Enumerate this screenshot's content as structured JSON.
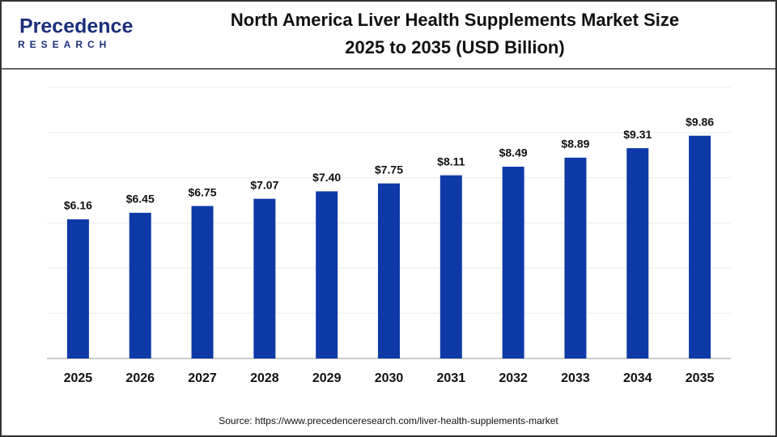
{
  "logo": {
    "name": "Precedence",
    "tagline": "RESEARCH"
  },
  "chart_data": {
    "type": "bar",
    "title": "North America Liver Health Supplements Market Size",
    "subtitle": "2025 to 2035 (USD Billion)",
    "categories": [
      "2025",
      "2026",
      "2027",
      "2028",
      "2029",
      "2030",
      "2031",
      "2032",
      "2033",
      "2034",
      "2035"
    ],
    "values": [
      6.16,
      6.45,
      6.75,
      7.07,
      7.4,
      7.75,
      8.11,
      8.49,
      8.89,
      9.31,
      9.86
    ],
    "value_labels": [
      "$6.16",
      "$6.45",
      "$6.75",
      "$7.07",
      "$7.40",
      "$7.75",
      "$8.11",
      "$8.49",
      "$8.89",
      "$9.31",
      "$9.86"
    ],
    "color": "#0e3aa8",
    "ylim": [
      0,
      12
    ],
    "yticks": [
      0,
      2,
      4,
      6,
      8,
      10,
      12
    ],
    "grid": true,
    "source": "Source: https://www.precedenceresearch.com/liver-health-supplements-market"
  }
}
